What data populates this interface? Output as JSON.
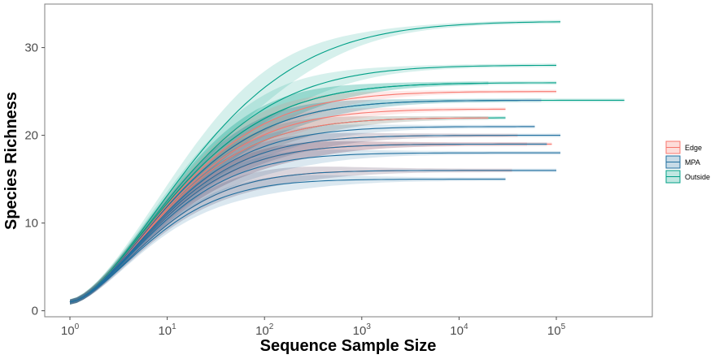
{
  "chart_data": {
    "type": "line",
    "title": "",
    "xlabel": "Sequence Sample Size",
    "ylabel": "Species Richness",
    "x_scale": "log10",
    "xlim": [
      1,
      500000
    ],
    "ylim": [
      -0.8,
      34.5
    ],
    "x_ticks": [
      {
        "value": 1,
        "base": "10",
        "exp": "0"
      },
      {
        "value": 10,
        "base": "10",
        "exp": "1"
      },
      {
        "value": 100,
        "base": "10",
        "exp": "2"
      },
      {
        "value": 1000,
        "base": "10",
        "exp": "3"
      },
      {
        "value": 10000,
        "base": "10",
        "exp": "4"
      },
      {
        "value": 100000,
        "base": "10",
        "exp": "5"
      }
    ],
    "y_ticks": [
      0,
      10,
      20,
      30
    ],
    "grid": false,
    "legend_position": "right",
    "legend": [
      {
        "label": "Edge",
        "color": "#F8766D"
      },
      {
        "label": "MPA",
        "color": "#1F6F9F"
      },
      {
        "label": "Outside",
        "color": "#00A087"
      }
    ],
    "series": [
      {
        "group": "Edge",
        "richness": 25,
        "max_x": 100000
      },
      {
        "group": "Edge",
        "richness": 23,
        "max_x": 30000
      },
      {
        "group": "Edge",
        "richness": 20,
        "max_x": 40000
      },
      {
        "group": "Edge",
        "richness": 19,
        "max_x": 90000
      },
      {
        "group": "Edge",
        "richness": 19,
        "max_x": 50000
      },
      {
        "group": "Edge",
        "richness": 16,
        "max_x": 35000
      },
      {
        "group": "Edge",
        "richness": 22,
        "max_x": 20000
      },
      {
        "group": "MPA",
        "richness": 24,
        "max_x": 70000
      },
      {
        "group": "MPA",
        "richness": 21,
        "max_x": 60000
      },
      {
        "group": "MPA",
        "richness": 20,
        "max_x": 110000
      },
      {
        "group": "MPA",
        "richness": 18,
        "max_x": 110000
      },
      {
        "group": "MPA",
        "richness": 16,
        "max_x": 100000
      },
      {
        "group": "MPA",
        "richness": 15,
        "max_x": 30000
      },
      {
        "group": "MPA",
        "richness": 19,
        "max_x": 80000
      },
      {
        "group": "Outside",
        "richness": 33,
        "max_x": 110000
      },
      {
        "group": "Outside",
        "richness": 28,
        "max_x": 100000
      },
      {
        "group": "Outside",
        "richness": 26,
        "max_x": 100000
      },
      {
        "group": "Outside",
        "richness": 26,
        "max_x": 20000
      },
      {
        "group": "Outside",
        "richness": 24,
        "max_x": 500000
      },
      {
        "group": "Outside",
        "richness": 22,
        "max_x": 30000
      }
    ]
  }
}
